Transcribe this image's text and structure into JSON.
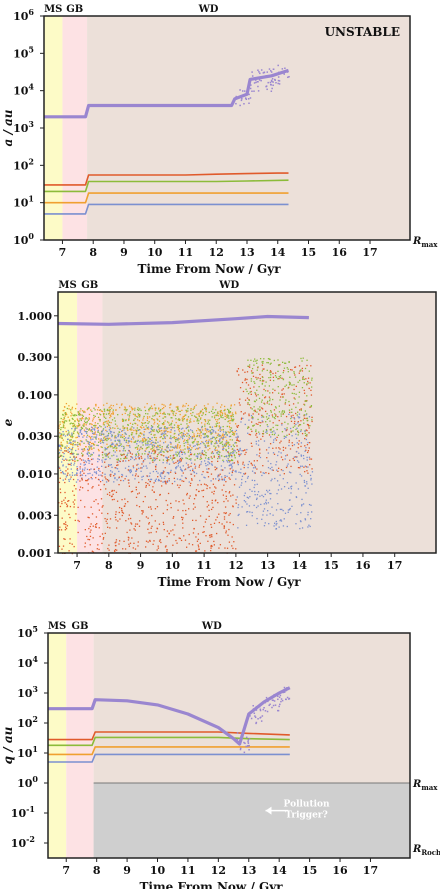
{
  "colors": {
    "ms": "#fdfbc7",
    "gb": "#fde2e4",
    "wd": "#ece0d9",
    "unstable_region": "#cfcfcf",
    "planet1": "#e05a2b",
    "planet2": "#8cbb3a",
    "planet3": "#f0a030",
    "planet4": "#7b90d0",
    "companion": "#9a86d0"
  },
  "chart_data": [
    {
      "type": "scatter",
      "panel": "a",
      "x_tick_labels": [
        "7",
        "8",
        "9",
        "10",
        "11",
        "12",
        "13",
        "14",
        "15",
        "16",
        "17"
      ],
      "xlabel": "Time From Now / Gyr",
      "ylabel": "a / au",
      "yscale": "log",
      "xlim": [
        6.4,
        18.3
      ],
      "ylim_exp": [
        0,
        6
      ],
      "y_tick_labels": [
        "10",
        "10",
        "10",
        "10",
        "10",
        "10",
        "10"
      ],
      "y_tick_exps": [
        "0",
        "1",
        "2",
        "3",
        "4",
        "5",
        "6"
      ],
      "phases": [
        {
          "name": "MS",
          "x0": 6.4,
          "x1": 7.0
        },
        {
          "name": "GB",
          "x0": 7.0,
          "x1": 7.8
        },
        {
          "name": "WD",
          "x0": 7.8,
          "x1": 18.3
        }
      ],
      "annotation": "UNSTABLE",
      "right_label": "R",
      "right_label_sub": "max",
      "series": [
        {
          "color": "planet1",
          "points": [
            [
              6.4,
              30
            ],
            [
              7.75,
              30
            ],
            [
              7.85,
              55
            ],
            [
              11,
              55
            ],
            [
              12,
              58
            ],
            [
              13,
              60
            ],
            [
              14,
              62
            ],
            [
              14.35,
              62
            ]
          ]
        },
        {
          "color": "planet2",
          "points": [
            [
              6.4,
              20
            ],
            [
              7.75,
              20
            ],
            [
              7.85,
              37
            ],
            [
              12,
              37
            ],
            [
              13,
              38
            ],
            [
              14.35,
              40
            ]
          ]
        },
        {
          "color": "planet3",
          "points": [
            [
              6.4,
              10
            ],
            [
              7.75,
              10
            ],
            [
              7.85,
              18
            ],
            [
              14.35,
              18
            ]
          ]
        },
        {
          "color": "planet4",
          "points": [
            [
              6.4,
              5
            ],
            [
              7.75,
              5
            ],
            [
              7.85,
              9
            ],
            [
              14.35,
              9
            ]
          ]
        },
        {
          "color": "companion",
          "points": [
            [
              6.4,
              2000
            ],
            [
              7.75,
              2000
            ],
            [
              7.85,
              4000
            ],
            [
              12.5,
              4000
            ],
            [
              12.6,
              6000
            ],
            [
              13.0,
              8000
            ],
            [
              13.1,
              20000
            ],
            [
              13.8,
              25000
            ],
            [
              14.35,
              35000
            ]
          ]
        }
      ]
    },
    {
      "type": "scatter",
      "panel": "e",
      "x_tick_labels": [
        "7",
        "8",
        "9",
        "10",
        "11",
        "12",
        "13",
        "14",
        "15",
        "16",
        "17"
      ],
      "xlabel": "Time From Now / Gyr",
      "ylabel": "e",
      "yscale": "log",
      "xlim": [
        6.4,
        18.3
      ],
      "ylim": [
        0.001,
        2.0
      ],
      "y_tick_labels": [
        "1.000",
        "0.300",
        "0.100",
        "0.030",
        "0.010",
        "0.003",
        "0.001"
      ],
      "y_tick_values": [
        1.0,
        0.3,
        0.1,
        0.03,
        0.01,
        0.003,
        0.001
      ],
      "phases": [
        {
          "name": "MS",
          "x0": 6.4,
          "x1": 7.0
        },
        {
          "name": "GB",
          "x0": 7.0,
          "x1": 7.8
        },
        {
          "name": "WD",
          "x0": 7.8,
          "x1": 18.3
        }
      ],
      "series": [
        {
          "color": "companion",
          "points": [
            [
              6.4,
              0.8
            ],
            [
              8,
              0.78
            ],
            [
              10,
              0.82
            ],
            [
              12,
              0.92
            ],
            [
              13,
              0.98
            ],
            [
              14.3,
              0.95
            ]
          ]
        }
      ],
      "clouds": [
        {
          "color": "planet3",
          "x0": 6.4,
          "x1": 12.0,
          "lo": 0.02,
          "hi": 0.08
        },
        {
          "color": "planet2",
          "x0": 6.4,
          "x1": 12.0,
          "lo": 0.015,
          "hi": 0.07
        },
        {
          "color": "planet4",
          "x0": 6.4,
          "x1": 12.0,
          "lo": 0.008,
          "hi": 0.04
        },
        {
          "color": "planet1",
          "x0": 6.4,
          "x1": 12.0,
          "lo": 0.001,
          "hi": 0.02
        },
        {
          "color": "planet1",
          "x0": 12.0,
          "x1": 14.4,
          "lo": 0.01,
          "hi": 0.25
        },
        {
          "color": "planet2",
          "x0": 12.3,
          "x1": 14.4,
          "lo": 0.03,
          "hi": 0.3
        },
        {
          "color": "planet4",
          "x0": 12.0,
          "x1": 14.4,
          "lo": 0.002,
          "hi": 0.06
        }
      ]
    },
    {
      "type": "scatter",
      "panel": "q",
      "x_tick_labels": [
        "7",
        "8",
        "9",
        "10",
        "11",
        "12",
        "13",
        "14",
        "15",
        "16",
        "17"
      ],
      "xlabel": "Time From Now / Gyr",
      "ylabel": "q / au",
      "yscale": "log",
      "xlim": [
        6.4,
        18.3
      ],
      "ylim_exp": [
        -2.5,
        5
      ],
      "y_tick_labels": [
        "10",
        "10",
        "10",
        "10",
        "10",
        "10",
        "10",
        "10"
      ],
      "y_tick_exps": [
        "5",
        "4",
        "3",
        "2",
        "1",
        "0",
        "-1",
        "-2"
      ],
      "phases": [
        {
          "name": "MS",
          "x0": 6.4,
          "x1": 7.0
        },
        {
          "name": "GB",
          "x0": 7.0,
          "x1": 7.9
        },
        {
          "name": "WD",
          "x0": 7.9,
          "x1": 18.3
        }
      ],
      "annotation_line1": "Pollution",
      "annotation_line2": "Trigger?",
      "right_label_top": "R",
      "right_label_top_sub": "max",
      "right_label_bottom": "R",
      "right_label_bottom_sub": "Roche",
      "series": [
        {
          "color": "planet1",
          "points": [
            [
              6.4,
              28
            ],
            [
              7.85,
              28
            ],
            [
              7.95,
              50
            ],
            [
              12,
              50
            ],
            [
              13,
              45
            ],
            [
              14.35,
              40
            ]
          ]
        },
        {
          "color": "planet2",
          "points": [
            [
              6.4,
              18
            ],
            [
              7.85,
              18
            ],
            [
              7.95,
              33
            ],
            [
              12,
              33
            ],
            [
              13,
              30
            ],
            [
              14.35,
              28
            ]
          ]
        },
        {
          "color": "planet3",
          "points": [
            [
              6.4,
              9
            ],
            [
              7.85,
              9
            ],
            [
              7.95,
              16
            ],
            [
              14.35,
              16
            ]
          ]
        },
        {
          "color": "planet4",
          "points": [
            [
              6.4,
              5
            ],
            [
              7.85,
              5
            ],
            [
              7.95,
              9
            ],
            [
              14.35,
              9
            ]
          ]
        },
        {
          "color": "companion",
          "points": [
            [
              6.4,
              300
            ],
            [
              7.85,
              300
            ],
            [
              7.95,
              600
            ],
            [
              9,
              550
            ],
            [
              10,
              400
            ],
            [
              11,
              200
            ],
            [
              12,
              70
            ],
            [
              12.5,
              30
            ],
            [
              12.7,
              20
            ],
            [
              13,
              200
            ],
            [
              13.5,
              500
            ],
            [
              14,
              1000
            ],
            [
              14.35,
              1500
            ]
          ]
        }
      ]
    }
  ]
}
